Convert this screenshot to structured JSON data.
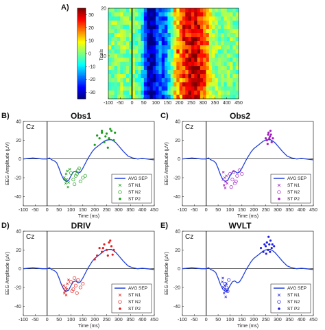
{
  "chart_data": [
    {
      "type": "heatmap",
      "label": "A)",
      "title": "",
      "ylabel": "Trials",
      "xlabel": "",
      "xlim": [
        -100,
        450
      ],
      "ylim": [
        1,
        20
      ],
      "xticks": [
        -100,
        -50,
        0,
        50,
        100,
        150,
        200,
        250,
        300,
        350,
        400,
        450
      ],
      "yticks": [
        20,
        10
      ],
      "colorbar": {
        "min": -35,
        "max": 35,
        "ticks": [
          30,
          20,
          10,
          0,
          -10,
          -20,
          -30
        ]
      },
      "colormap": "jet",
      "rows": 22,
      "cols": 44
    },
    {
      "type": "line",
      "label": "B)",
      "title": "Obs1",
      "electrode": "Cz",
      "xlabel": "Time (ms)",
      "ylabel": "EEG Amplitude (μV)",
      "xlim": [
        -100,
        450
      ],
      "ylim": [
        -50,
        40
      ],
      "xticks": [
        -100,
        -50,
        0,
        50,
        100,
        150,
        200,
        250,
        300,
        350,
        400,
        450
      ],
      "yticks": [
        -40,
        -20,
        0,
        20,
        40
      ],
      "color": "#1a9e1a",
      "legend": [
        "AVG SEP",
        "ST N1",
        "ST N2",
        "ST P2"
      ],
      "n1": [
        [
          72,
          -20
        ],
        [
          78,
          -26
        ],
        [
          80,
          -16
        ],
        [
          82,
          -22
        ],
        [
          85,
          -13
        ],
        [
          75,
          -22
        ],
        [
          90,
          -25
        ],
        [
          95,
          -11
        ],
        [
          88,
          -30
        ]
      ],
      "n2": [
        [
          100,
          -15
        ],
        [
          110,
          -22
        ],
        [
          120,
          -18
        ],
        [
          130,
          -12
        ],
        [
          140,
          -24
        ],
        [
          150,
          -20
        ],
        [
          125,
          -16
        ],
        [
          115,
          -27
        ],
        [
          160,
          -18
        ],
        [
          135,
          -10
        ]
      ],
      "p2": [
        [
          200,
          15
        ],
        [
          210,
          25
        ],
        [
          220,
          22
        ],
        [
          230,
          28
        ],
        [
          240,
          18
        ],
        [
          250,
          27
        ],
        [
          260,
          22
        ],
        [
          270,
          30
        ],
        [
          280,
          20
        ],
        [
          230,
          30
        ],
        [
          255,
          12
        ],
        [
          245,
          24
        ],
        [
          265,
          32
        ],
        [
          285,
          28
        ]
      ]
    },
    {
      "type": "line",
      "label": "C)",
      "title": "Obs2",
      "electrode": "Cz",
      "xlabel": "Time (ms)",
      "ylabel": "EEG Amplitude (μV)",
      "xlim": [
        -100,
        450
      ],
      "ylim": [
        -50,
        40
      ],
      "xticks": [
        -100,
        -50,
        0,
        50,
        100,
        150,
        200,
        250,
        300,
        350,
        400,
        450
      ],
      "yticks": [
        -40,
        -20,
        0,
        20,
        40
      ],
      "color": "#a020c0",
      "legend": [
        "AVG SEP",
        "ST N1",
        "ST N2",
        "ST P2"
      ],
      "n1": [
        [
          70,
          -22
        ],
        [
          75,
          -28
        ],
        [
          78,
          -20
        ],
        [
          80,
          -31
        ],
        [
          82,
          -24
        ],
        [
          85,
          -18
        ],
        [
          88,
          -26
        ],
        [
          72,
          -14
        ]
      ],
      "n2": [
        [
          100,
          -16
        ],
        [
          110,
          -22
        ],
        [
          115,
          -14
        ],
        [
          120,
          -26
        ],
        [
          130,
          -18
        ],
        [
          140,
          -12
        ],
        [
          150,
          -16
        ],
        [
          125,
          -24
        ],
        [
          105,
          -30
        ]
      ],
      "p2": [
        [
          255,
          20
        ],
        [
          260,
          26
        ],
        [
          265,
          22
        ],
        [
          270,
          30
        ],
        [
          275,
          18
        ],
        [
          262,
          28
        ],
        [
          268,
          24
        ],
        [
          258,
          16
        ],
        [
          272,
          26
        ],
        [
          280,
          22
        ],
        [
          250,
          22
        ]
      ]
    },
    {
      "type": "line",
      "label": "D)",
      "title": "DRIV",
      "electrode": "Cz",
      "xlabel": "Time (ms)",
      "ylabel": "EEG Amplitude (μV)",
      "xlim": [
        -100,
        450
      ],
      "ylim": [
        -50,
        40
      ],
      "xticks": [
        -100,
        -50,
        0,
        50,
        100,
        150,
        200,
        250,
        300,
        350,
        400,
        450
      ],
      "yticks": [
        -40,
        -20,
        0,
        20,
        40
      ],
      "color": "#e02020",
      "legend": [
        "AVG SEP",
        "ST N1",
        "ST N2",
        "ST P2"
      ],
      "n1": [
        [
          70,
          -18
        ],
        [
          75,
          -24
        ],
        [
          78,
          -20
        ],
        [
          80,
          -28
        ],
        [
          82,
          -22
        ],
        [
          85,
          -16
        ],
        [
          90,
          -12
        ],
        [
          72,
          -26
        ]
      ],
      "n2": [
        [
          100,
          -14
        ],
        [
          110,
          -22
        ],
        [
          120,
          -18
        ],
        [
          125,
          -26
        ],
        [
          130,
          -12
        ],
        [
          140,
          -20
        ],
        [
          150,
          -16
        ],
        [
          115,
          -10
        ],
        [
          105,
          -24
        ]
      ],
      "p2": [
        [
          200,
          10
        ],
        [
          210,
          14
        ],
        [
          220,
          22
        ],
        [
          230,
          18
        ],
        [
          240,
          26
        ],
        [
          250,
          20
        ],
        [
          260,
          28
        ],
        [
          270,
          24
        ],
        [
          280,
          20
        ],
        [
          265,
          30
        ],
        [
          275,
          15
        ],
        [
          235,
          22
        ],
        [
          255,
          14
        ]
      ]
    },
    {
      "type": "line",
      "label": "E)",
      "title": "WVLT",
      "electrode": "Cz",
      "xlabel": "Time (ms)",
      "ylabel": "EEG Amplitude (μV)",
      "xlim": [
        -100,
        450
      ],
      "ylim": [
        -50,
        40
      ],
      "xticks": [
        -100,
        -50,
        0,
        50,
        100,
        150,
        200,
        250,
        300,
        350,
        400,
        450
      ],
      "yticks": [
        -40,
        -20,
        0,
        20,
        40
      ],
      "color": "#2020e0",
      "legend": [
        "AVG SEP",
        "ST N1",
        "ST N2",
        "ST P2"
      ],
      "n1": [
        [
          68,
          -14
        ],
        [
          72,
          -20
        ],
        [
          75,
          -26
        ],
        [
          78,
          -18
        ],
        [
          80,
          -22
        ],
        [
          82,
          -30
        ],
        [
          85,
          -16
        ],
        [
          88,
          -24
        ],
        [
          70,
          -10
        ]
      ],
      "n2": [
        [
          80,
          -16
        ],
        [
          85,
          -20
        ],
        [
          90,
          -24
        ],
        [
          95,
          -12
        ]
      ],
      "p2": [
        [
          230,
          22
        ],
        [
          240,
          18
        ],
        [
          250,
          24
        ],
        [
          255,
          28
        ],
        [
          260,
          20
        ],
        [
          265,
          26
        ],
        [
          270,
          30
        ],
        [
          275,
          22
        ],
        [
          262,
          34
        ],
        [
          268,
          18
        ],
        [
          252,
          16
        ],
        [
          278,
          26
        ],
        [
          245,
          26
        ],
        [
          285,
          24
        ]
      ]
    }
  ],
  "avg_sep": {
    "t": [
      -100,
      -60,
      -20,
      0,
      10,
      20,
      30,
      40,
      50,
      60,
      70,
      80,
      90,
      100,
      110,
      120,
      130,
      140,
      150,
      160,
      170,
      180,
      190,
      200,
      210,
      220,
      230,
      240,
      250,
      260,
      270,
      280,
      290,
      300,
      310,
      320,
      340,
      360,
      380,
      400,
      420,
      450
    ],
    "v": [
      0,
      1,
      0,
      0,
      1,
      -1,
      -2,
      -4,
      -10,
      -17,
      -22,
      -24,
      -23,
      -18,
      -14,
      -13,
      -15,
      -14,
      -10,
      -5,
      0,
      4,
      8,
      11,
      13,
      15,
      17,
      19,
      20,
      20.5,
      20.5,
      19,
      17,
      14,
      11,
      8,
      3,
      1,
      0,
      0.5,
      0,
      -1
    ]
  }
}
